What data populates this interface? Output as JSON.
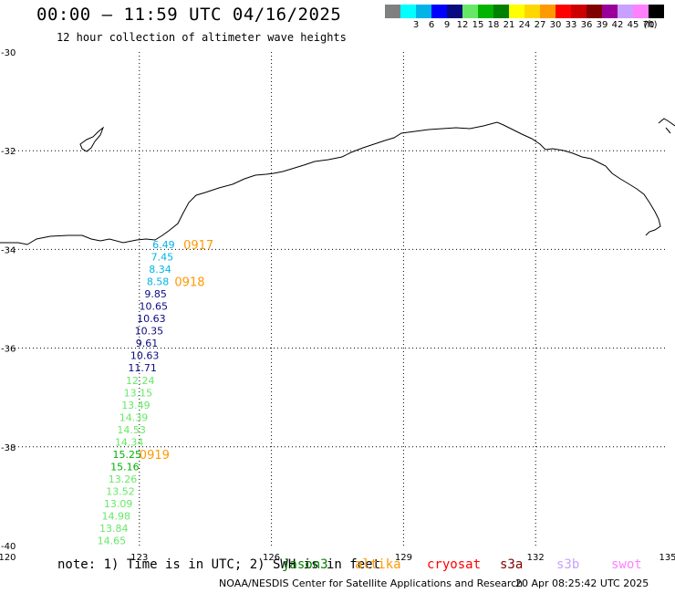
{
  "header": {
    "title": "00:00 – 11:59 UTC 04/16/2025",
    "subtitle": "12 hour collection of altimeter wave heights"
  },
  "legend": {
    "unit": "(ft)",
    "bins": [
      {
        "label": "",
        "color": "#808080"
      },
      {
        "label": "3",
        "color": "#00ffff"
      },
      {
        "label": "6",
        "color": "#00b4e6"
      },
      {
        "label": "9",
        "color": "#0000ff"
      },
      {
        "label": "12",
        "color": "#0a0a80"
      },
      {
        "label": "15",
        "color": "#66e866"
      },
      {
        "label": "18",
        "color": "#00b400"
      },
      {
        "label": "21",
        "color": "#008000"
      },
      {
        "label": "24",
        "color": "#ffff00"
      },
      {
        "label": "27",
        "color": "#ffd700"
      },
      {
        "label": "30",
        "color": "#ff9900"
      },
      {
        "label": "33",
        "color": "#ff0000"
      },
      {
        "label": "36",
        "color": "#cc0000"
      },
      {
        "label": "39",
        "color": "#800000"
      },
      {
        "label": "42",
        "color": "#990099"
      },
      {
        "label": "45",
        "color": "#c8a0ff"
      },
      {
        "label": "70",
        "color": "#ff80ff"
      },
      {
        "label": "",
        "color": "#000000"
      }
    ]
  },
  "chart_data": {
    "type": "scatter",
    "xlim": [
      120,
      135
    ],
    "ylim": [
      -40,
      -30
    ],
    "x_ticks": [
      "120",
      "123",
      "126",
      "129",
      "132",
      "135"
    ],
    "y_ticks": [
      "-30",
      "-32",
      "-34",
      "-36",
      "-38",
      "-40"
    ],
    "grid": true,
    "points": [
      {
        "lon": 123.55,
        "lat": -33.9,
        "value": "6.49",
        "color": "#00b4e6"
      },
      {
        "lon": 123.52,
        "lat": -34.15,
        "value": "7.45",
        "color": "#00b4e6"
      },
      {
        "lon": 123.47,
        "lat": -34.4,
        "value": "8.34",
        "color": "#00b4e6"
      },
      {
        "lon": 123.42,
        "lat": -34.65,
        "value": "8.58",
        "color": "#00b4e6"
      },
      {
        "lon": 123.37,
        "lat": -34.9,
        "value": "9.85",
        "color": "#0a0a80"
      },
      {
        "lon": 123.32,
        "lat": -35.15,
        "value": "10.65",
        "color": "#0a0a80"
      },
      {
        "lon": 123.27,
        "lat": -35.4,
        "value": "10.63",
        "color": "#0a0a80"
      },
      {
        "lon": 123.22,
        "lat": -35.65,
        "value": "10.35",
        "color": "#0a0a80"
      },
      {
        "lon": 123.17,
        "lat": -35.9,
        "value": "9.61",
        "color": "#0a0a80"
      },
      {
        "lon": 123.12,
        "lat": -36.15,
        "value": "10.63",
        "color": "#0a0a80"
      },
      {
        "lon": 123.07,
        "lat": -36.4,
        "value": "11.71",
        "color": "#0a0a80"
      },
      {
        "lon": 123.02,
        "lat": -36.65,
        "value": "12.24",
        "color": "#66e866"
      },
      {
        "lon": 122.97,
        "lat": -36.9,
        "value": "13.15",
        "color": "#66e866"
      },
      {
        "lon": 122.92,
        "lat": -37.15,
        "value": "13.49",
        "color": "#66e866"
      },
      {
        "lon": 122.87,
        "lat": -37.4,
        "value": "14.39",
        "color": "#66e866"
      },
      {
        "lon": 122.82,
        "lat": -37.65,
        "value": "14.53",
        "color": "#66e866"
      },
      {
        "lon": 122.77,
        "lat": -37.9,
        "value": "14.34",
        "color": "#66e866"
      },
      {
        "lon": 122.72,
        "lat": -38.15,
        "value": "15.25",
        "color": "#00b400"
      },
      {
        "lon": 122.67,
        "lat": -38.4,
        "value": "15.16",
        "color": "#00b400"
      },
      {
        "lon": 122.62,
        "lat": -38.65,
        "value": "13.26",
        "color": "#66e866"
      },
      {
        "lon": 122.57,
        "lat": -38.9,
        "value": "13.52",
        "color": "#66e866"
      },
      {
        "lon": 122.52,
        "lat": -39.15,
        "value": "13.09",
        "color": "#66e866"
      },
      {
        "lon": 122.47,
        "lat": -39.4,
        "value": "14.98",
        "color": "#66e866"
      },
      {
        "lon": 122.42,
        "lat": -39.65,
        "value": "13.84",
        "color": "#66e866"
      },
      {
        "lon": 122.37,
        "lat": -39.9,
        "value": "14.65",
        "color": "#66e866"
      }
    ],
    "time_labels": [
      {
        "lon": 124.0,
        "lat": -33.9,
        "text": "0917",
        "color": "#ff9900"
      },
      {
        "lon": 123.8,
        "lat": -34.65,
        "text": "0918",
        "color": "#ff9900"
      },
      {
        "lon": 123.0,
        "lat": -38.15,
        "text": "0919",
        "color": "#ff9900"
      }
    ]
  },
  "notes": {
    "note_text": "note: 1) Time is in UTC; 2) SWH is in feet",
    "satellites": [
      {
        "name": "jason3",
        "color": "#008000"
      },
      {
        "name": "altika",
        "color": "#ff9900"
      },
      {
        "name": "cryosat",
        "color": "#ff0000"
      },
      {
        "name": "s3a",
        "color": "#800000"
      },
      {
        "name": "s3b",
        "color": "#c8a0ff"
      },
      {
        "name": "swot",
        "color": "#ff80ff"
      }
    ]
  },
  "footer": {
    "credit": "NOAA/NESDIS Center for Satellite Applications and Research",
    "timestamp": "20 Apr 08:25:42 UTC 2025"
  }
}
